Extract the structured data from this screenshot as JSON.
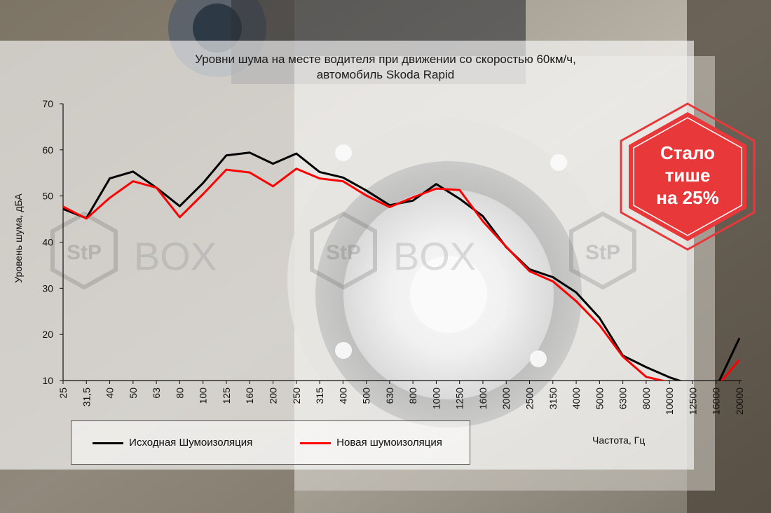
{
  "title_line1": "Уровни шума на месте водителя при движении со скоростью  60км/ч,",
  "title_line2": "автомобиль  Skoda Rapid",
  "badge": {
    "line1": "Стало",
    "line2": "тише",
    "line3": "на 25%",
    "color": "#e8383a"
  },
  "watermark": {
    "logo": "StP",
    "text": "BOX"
  },
  "chart_data": {
    "type": "line",
    "title": "Уровни шума на месте водителя при движении со скоростью  60км/ч, автомобиль  Skoda Rapid",
    "xlabel": "Частота, Гц",
    "ylabel": "Уровень шума, дБА",
    "ylim": [
      10,
      70
    ],
    "yticks": [
      10,
      20,
      30,
      40,
      50,
      60,
      70
    ],
    "grid": false,
    "legend_position": "bottom-left",
    "categories": [
      "25",
      "31,5",
      "40",
      "50",
      "63",
      "80",
      "100",
      "125",
      "160",
      "200",
      "250",
      "315",
      "400",
      "500",
      "630",
      "800",
      "1000",
      "1250",
      "1600",
      "2000",
      "2500",
      "3150",
      "4000",
      "5000",
      "6300",
      "8000",
      "10000",
      "12500",
      "16000",
      "20000"
    ],
    "series": [
      {
        "name": "Исходная Шумоизоляция",
        "color": "#000000",
        "values": [
          47.2,
          45.2,
          53.8,
          55.3,
          51.8,
          47.8,
          52.8,
          58.8,
          59.4,
          57.0,
          59.2,
          55.2,
          54.0,
          51.2,
          48.0,
          49.0,
          52.6,
          49.4,
          45.6,
          38.9,
          34.1,
          32.4,
          29.1,
          23.6,
          15.4,
          12.9,
          10.7,
          9.0,
          8.5,
          19.2
        ]
      },
      {
        "name": "Новая шумоизоляция",
        "color": "#ff0000",
        "values": [
          47.7,
          45.1,
          49.6,
          53.2,
          51.8,
          45.4,
          50.4,
          55.7,
          55.1,
          52.1,
          55.9,
          53.8,
          53.2,
          50.1,
          47.6,
          49.7,
          51.6,
          51.3,
          44.5,
          39.0,
          33.7,
          31.5,
          27.2,
          22.0,
          15.2,
          10.8,
          9.6,
          9.0,
          8.5,
          14.5
        ]
      }
    ]
  }
}
